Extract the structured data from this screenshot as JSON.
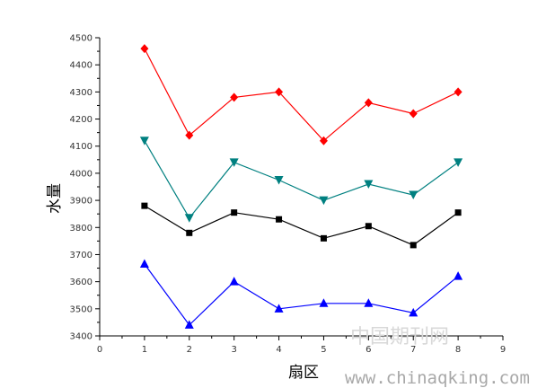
{
  "chart_data": {
    "type": "line",
    "xlabel": "扇区",
    "ylabel": "水量",
    "xlim": [
      0,
      9
    ],
    "ylim": [
      3400,
      4500
    ],
    "xticks": [
      0,
      1,
      2,
      3,
      4,
      5,
      6,
      7,
      8,
      9
    ],
    "yticks": [
      3400,
      3500,
      3600,
      3700,
      3800,
      3900,
      4000,
      4100,
      4200,
      4300,
      4400,
      4500
    ],
    "grid": false,
    "x": [
      1,
      2,
      3,
      4,
      5,
      6,
      7,
      8
    ],
    "series": [
      {
        "marker": "diamond",
        "color": "#ff0000",
        "values": [
          4460,
          4140,
          4280,
          4300,
          4120,
          4260,
          4220,
          4300
        ]
      },
      {
        "marker": "triangle-down",
        "color": "#008080",
        "values": [
          4120,
          3835,
          4040,
          3975,
          3900,
          3960,
          3920,
          4040
        ]
      },
      {
        "marker": "square",
        "color": "#000000",
        "values": [
          3880,
          3780,
          3855,
          3830,
          3760,
          3805,
          3735,
          3855
        ]
      },
      {
        "marker": "triangle-up",
        "color": "#0000ff",
        "values": [
          3665,
          3440,
          3600,
          3500,
          3520,
          3520,
          3485,
          3620
        ]
      }
    ]
  },
  "watermark": {
    "cn": "中国期刊网",
    "url": "www.chinaqking.com"
  }
}
